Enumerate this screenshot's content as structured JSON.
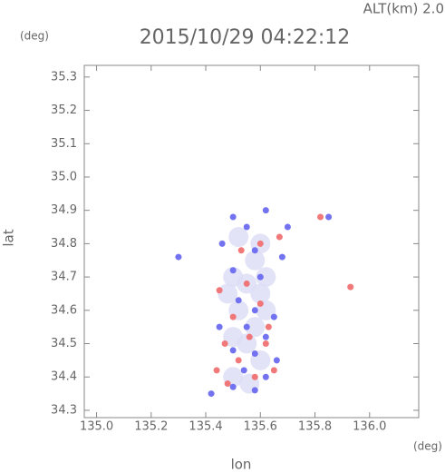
{
  "chart_data": {
    "type": "scatter",
    "title": "2015/10/29 04:22:12",
    "subtitle": "ALT(km) 2.0",
    "x_label": "lon",
    "y_label": "lat",
    "x_unit": "(deg)",
    "y_unit": "(deg)",
    "xlim": [
      134.955,
      136.18
    ],
    "ylim": [
      34.278,
      35.335
    ],
    "xticks": [
      {
        "value": 135.0,
        "label": "135.0"
      },
      135.2,
      135.4,
      135.6,
      135.8,
      {
        "value": 136.0,
        "label": "136.0"
      }
    ],
    "yticks": [
      34.3,
      34.4,
      34.5,
      34.6,
      34.7,
      34.8,
      34.9,
      {
        "value": 35.0,
        "label": "35.0"
      },
      35.1,
      35.2,
      35.3
    ],
    "series": [
      {
        "color": "#dcdcf6",
        "x": [
          135.5,
          135.55,
          135.6,
          135.52,
          135.58,
          135.62,
          135.55,
          135.6,
          135.5,
          135.56,
          135.48,
          135.62,
          135.58,
          135.52,
          135.6,
          135.5
        ],
        "values": [
          34.7,
          34.68,
          34.65,
          34.6,
          34.55,
          34.6,
          34.5,
          34.45,
          34.4,
          34.38,
          34.65,
          34.7,
          34.75,
          34.82,
          34.8,
          34.52
        ]
      },
      {
        "color": "#6464f0",
        "x": [
          135.5,
          135.55,
          135.62,
          135.7,
          135.46,
          135.58,
          135.68,
          135.5,
          135.6,
          135.52,
          135.58,
          135.65,
          135.55,
          135.62,
          135.5,
          135.58,
          135.66,
          135.54,
          135.62,
          135.5,
          135.58,
          135.85,
          135.3,
          135.42,
          135.45
        ],
        "values": [
          34.88,
          34.85,
          34.9,
          34.85,
          34.8,
          34.78,
          34.76,
          34.72,
          34.7,
          34.63,
          34.6,
          34.58,
          34.55,
          34.52,
          34.48,
          34.47,
          34.45,
          34.42,
          34.4,
          34.37,
          34.36,
          34.88,
          34.76,
          34.35,
          34.55
        ]
      },
      {
        "color": "#f06a6a",
        "x": [
          135.93,
          135.82,
          135.44,
          135.47,
          135.6,
          135.55,
          135.5,
          135.62,
          135.52,
          135.58,
          135.65,
          135.45,
          135.6,
          135.53,
          135.67,
          135.48,
          135.56,
          135.63
        ],
        "values": [
          34.67,
          34.88,
          34.42,
          34.5,
          34.62,
          34.68,
          34.58,
          34.5,
          34.45,
          34.4,
          34.42,
          34.66,
          34.8,
          34.78,
          34.82,
          34.38,
          34.52,
          34.55
        ]
      }
    ]
  }
}
